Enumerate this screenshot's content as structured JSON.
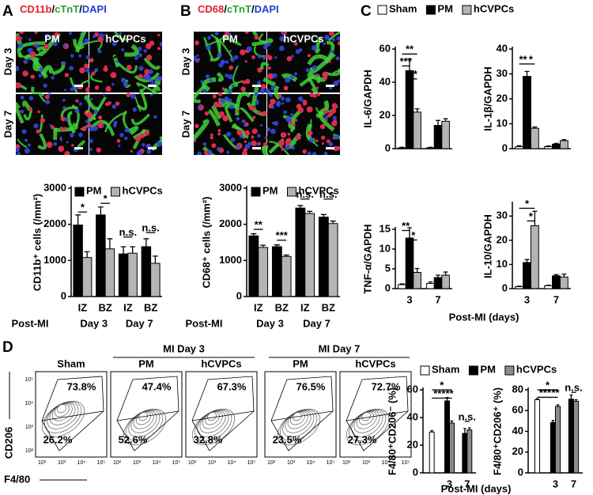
{
  "figure": {
    "letters": [
      "A",
      "B",
      "C",
      "D"
    ],
    "micrographs": [
      {
        "stain": [
          {
            "text": "CD11b",
            "color": "#e0202a"
          },
          {
            "text": "/",
            "color": "#000000"
          },
          {
            "text": "cTnT",
            "color": "#2aa02a"
          },
          {
            "text": "/",
            "color": "#000000"
          },
          {
            "text": "DAPI",
            "color": "#2040d0"
          }
        ]
      },
      {
        "stain": [
          {
            "text": "CD68",
            "color": "#e0202a"
          },
          {
            "text": "/",
            "color": "#000000"
          },
          {
            "text": "cTnT",
            "color": "#2aa02a"
          },
          {
            "text": "/",
            "color": "#000000"
          },
          {
            "text": "DAPI",
            "color": "#2040d0"
          }
        ]
      }
    ],
    "columns": [
      "PM",
      "hCVPCs"
    ],
    "rows": [
      "Day 3",
      "Day 7"
    ]
  },
  "flow": {
    "ylabel": "CD206",
    "xlabel": "F4/80",
    "ticks": [
      "10²",
      "10³",
      "10⁴",
      "10⁵"
    ],
    "groups": [
      "MI Day 3",
      "MI Day 7"
    ],
    "plots": [
      {
        "label": "Sham",
        "upper": "73.8%",
        "lower": "26.2%"
      },
      {
        "label": "PM",
        "upper": "47.4%",
        "lower": "52.6%"
      },
      {
        "label": "hCVPCs",
        "upper": "67.3%",
        "lower": "32.8%"
      },
      {
        "label": "PM",
        "upper": "76.5%",
        "lower": "23.5%"
      },
      {
        "label": "hCVPCs",
        "upper": "72.7%",
        "lower": "27.3%"
      }
    ]
  },
  "chart_data": [
    {
      "type": "bar",
      "categories": [
        "IZ",
        "BZ",
        "IZ",
        "BZ"
      ],
      "groups": [
        "Day 3",
        "Day 7"
      ],
      "xlabel": "Post-MI",
      "series": [
        {
          "name": "PM",
          "color": "#000000"
        },
        {
          "name": "hCVPCs",
          "color": "#b4b4b4"
        }
      ],
      "panels": [
        {
          "ylabel": "CD11b⁺ cells (/mm²)",
          "ylim": [
            0,
            3000
          ],
          "yticks": [
            0,
            1000,
            2000,
            3000
          ],
          "values": [
            [
              1980,
              2260,
              1180,
              1380
            ],
            [
              1080,
              1320,
              1200,
              920
            ]
          ],
          "errors": [
            [
              280,
              220,
              200,
              220
            ],
            [
              160,
              280,
              180,
              200
            ]
          ],
          "annotations": [
            "*",
            "*",
            "n.s.",
            "n.s."
          ]
        }
      ]
    },
    {
      "type": "bar",
      "categories": [
        "IZ",
        "BZ",
        "IZ",
        "BZ"
      ],
      "groups": [
        "Day 3",
        "Day 7"
      ],
      "xlabel": "Post-MI",
      "series": [
        {
          "name": "PM",
          "color": "#000000"
        },
        {
          "name": "hCVPCs",
          "color": "#b4b4b4"
        }
      ],
      "panels": [
        {
          "ylabel": "CD68⁺ cells (/mm²)",
          "ylim": [
            0,
            3000
          ],
          "yticks": [
            0,
            1000,
            2000,
            3000
          ],
          "values": [
            [
              1680,
              1380,
              2450,
              2200
            ],
            [
              1360,
              1110,
              2300,
              2020
            ]
          ],
          "errors": [
            [
              60,
              50,
              70,
              70
            ],
            [
              60,
              40,
              60,
              70
            ]
          ],
          "annotations": [
            "**",
            "***",
            "n.s.",
            "n.s."
          ]
        }
      ]
    },
    {
      "type": "bar",
      "categories": [
        "3",
        "7"
      ],
      "xlabel": "Post-MI (days)",
      "series": [
        {
          "name": "Sham",
          "color": "#ffffff"
        },
        {
          "name": "PM",
          "color": "#000000"
        },
        {
          "name": "hCVPCs",
          "color": "#b4b4b4"
        }
      ],
      "panels": [
        {
          "ylabel": "IL-6/GAPDH",
          "ylim": [
            0,
            60
          ],
          "yticks": [
            0,
            20,
            40,
            60
          ],
          "values": [
            [
              0.5,
              0.5
            ],
            [
              47,
              14
            ],
            [
              22,
              16.5
            ]
          ],
          "errors": [
            [
              0.3,
              0.3
            ],
            [
              7,
              3
            ],
            [
              2,
              1.5
            ]
          ],
          "annotations": [
            "**",
            "***",
            "**"
          ]
        },
        {
          "ylabel": "IL-1β/GAPDH",
          "ylim": [
            0,
            40
          ],
          "yticks": [
            0,
            10,
            20,
            30,
            40
          ],
          "values": [
            [
              0.8,
              0.8
            ],
            [
              29,
              1.8
            ],
            [
              8.2,
              3.2
            ]
          ],
          "errors": [
            [
              0.4,
              0.3
            ],
            [
              2,
              0.3
            ],
            [
              0.5,
              0.4
            ]
          ],
          "annotations": [
            "**",
            "*"
          ]
        },
        {
          "ylabel": "TNF-α/GAPDH",
          "ylim": [
            0,
            15
          ],
          "yticks": [
            0,
            5,
            10,
            15
          ],
          "values": [
            [
              1,
              1.3
            ],
            [
              12.8,
              2.8
            ],
            [
              4.1,
              3.4
            ]
          ],
          "errors": [
            [
              0.2,
              0.4
            ],
            [
              2.6,
              0.6
            ],
            [
              1,
              0.8
            ]
          ],
          "annotations": [
            "**",
            "*"
          ]
        },
        {
          "ylabel": "IL-10/GAPDH",
          "ylim": [
            0,
            35
          ],
          "yticks": [
            0,
            10,
            20,
            30
          ],
          "values": [
            [
              0.8,
              1.2
            ],
            [
              10.8,
              5.3
            ],
            [
              26,
              4.8
            ]
          ],
          "errors": [
            [
              0.2,
              0.2
            ],
            [
              1.2,
              0.5
            ],
            [
              6,
              1.2
            ]
          ],
          "annotations": [
            "*",
            "*"
          ]
        }
      ]
    },
    {
      "type": "bar",
      "categories": [
        null,
        "3",
        "7"
      ],
      "xlabel": "Post-MI (days)",
      "series": [
        {
          "name": "Sham",
          "color": "#ffffff"
        },
        {
          "name": "PM",
          "color": "#000000"
        },
        {
          "name": "hCVPCs",
          "color": "#8c8c8c"
        }
      ],
      "panels": [
        {
          "ylabel": "F4/80⁺CD206⁻ (%)",
          "ylim": [
            0,
            60
          ],
          "yticks": [
            0,
            20,
            40,
            60
          ],
          "values": [
            [
              29.5,
              null,
              null
            ],
            [
              null,
              52,
              28.5
            ],
            [
              null,
              36,
              31
            ]
          ],
          "errors": [
            [
              1,
              null,
              null
            ],
            [
              null,
              2.5,
              3.5
            ],
            [
              null,
              1.5,
              1.5
            ]
          ],
          "annotations": [
            "*",
            "***",
            "**",
            "n.s."
          ]
        },
        {
          "ylabel": "F4/80⁺CD206⁺ (%)",
          "ylim": [
            0,
            80
          ],
          "yticks": [
            0,
            20,
            40,
            60,
            80
          ],
          "values": [
            [
              70.5,
              null,
              null
            ],
            [
              null,
              48.5,
              71
            ],
            [
              null,
              64,
              69
            ]
          ],
          "errors": [
            [
              1,
              null,
              null
            ],
            [
              null,
              2,
              4
            ],
            [
              null,
              1.5,
              1.5
            ]
          ],
          "annotations": [
            "*",
            "***",
            "**",
            "n.s."
          ]
        }
      ]
    }
  ]
}
